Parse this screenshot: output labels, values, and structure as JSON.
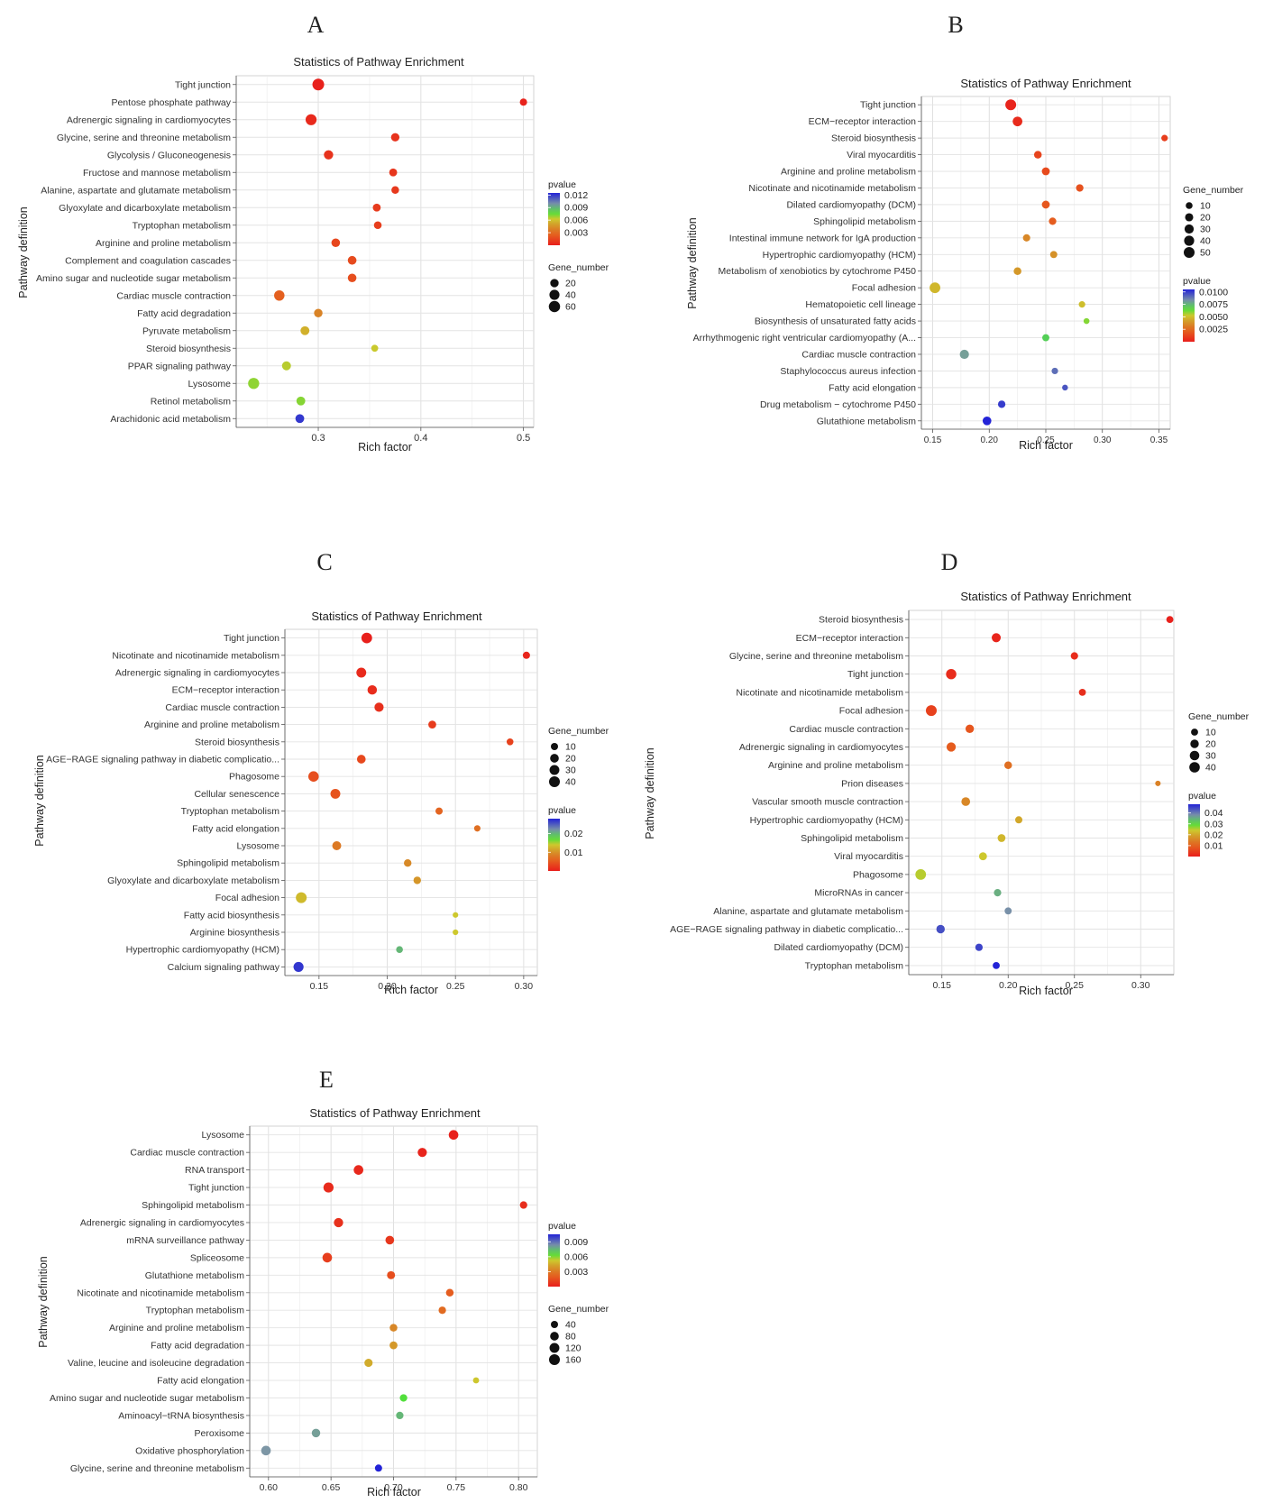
{
  "chart_data": [
    {
      "panel": "A",
      "type": "scatter",
      "title": "Statistics of Pathway Enrichment",
      "xlabel": "Rich factor",
      "ylabel": "Pathway definition",
      "xlim": [
        0.22,
        0.51
      ],
      "xticks": [
        "0.3",
        "0.4",
        "0.5"
      ],
      "grid": true,
      "legend_placement": "right",
      "pvalue_legend": {
        "title": "pvalue",
        "min": 0,
        "max": 0.0125,
        "ticks": [
          "0.012",
          "0.009",
          "0.006",
          "0.003"
        ]
      },
      "size_legend": {
        "title": "Gene_number",
        "ticks": [
          "20",
          "40",
          "60"
        ]
      },
      "legend_order": [
        "pvalue",
        "size"
      ],
      "categories": [
        "Tight junction",
        "Pentose phosphate pathway",
        "Adrenergic signaling in cardiomyocytes",
        "Glycine, serine and threonine metabolism",
        "Glycolysis / Gluconeogenesis",
        "Fructose and mannose metabolism",
        "Alanine, aspartate and glutamate metabolism",
        "Glyoxylate and dicarboxylate metabolism",
        "Tryptophan metabolism",
        "Arginine and proline metabolism",
        "Complement and coagulation cascades",
        "Amino sugar and nucleotide sugar metabolism",
        "Cardiac muscle contraction",
        "Fatty acid degradation",
        "Pyruvate metabolism",
        "Steroid biosynthesis",
        "PPAR signaling pathway",
        "Lysosome",
        "Retinol metabolism",
        "Arachidonic acid metabolism"
      ],
      "x": [
        0.3,
        0.5,
        0.293,
        0.375,
        0.31,
        0.373,
        0.375,
        0.357,
        0.358,
        0.317,
        0.333,
        0.333,
        0.262,
        0.3,
        0.287,
        0.355,
        0.269,
        0.237,
        0.283,
        0.282
      ],
      "pvalue": [
        0.0001,
        0.0002,
        0.0004,
        0.0008,
        0.0008,
        0.0009,
        0.001,
        0.0011,
        0.0012,
        0.0015,
        0.0017,
        0.0018,
        0.0025,
        0.004,
        0.0055,
        0.0063,
        0.0065,
        0.007,
        0.0071,
        0.012
      ],
      "gene_number": [
        68,
        10,
        55,
        20,
        30,
        15,
        13,
        15,
        14,
        22,
        23,
        22,
        45,
        21,
        25,
        8,
        26,
        57,
        24,
        24
      ]
    },
    {
      "panel": "B",
      "type": "scatter",
      "title": "Statistics of Pathway Enrichment",
      "xlabel": "Rich factor",
      "ylabel": "Pathway definition",
      "xlim": [
        0.14,
        0.36
      ],
      "xticks": [
        "0.15",
        "0.20",
        "0.25",
        "0.30",
        "0.35"
      ],
      "grid": true,
      "legend_placement": "right",
      "pvalue_legend": {
        "title": "pvalue",
        "min": 0,
        "max": 0.0105,
        "ticks": [
          "0.0100",
          "0.0075",
          "0.0050",
          "0.0025"
        ]
      },
      "size_legend": {
        "title": "Gene_number",
        "ticks": [
          "10",
          "20",
          "30",
          "40",
          "50"
        ]
      },
      "legend_order": [
        "size",
        "pvalue"
      ],
      "categories": [
        "Tight junction",
        "ECM−receptor interaction",
        "Steroid biosynthesis",
        "Viral myocarditis",
        "Arginine and proline metabolism",
        "Nicotinate and nicotinamide metabolism",
        "Dilated cardiomyopathy (DCM)",
        "Sphingolipid metabolism",
        "Intestinal immune network for IgA production",
        "Hypertrophic cardiomyopathy (HCM)",
        "Metabolism of xenobiotics by cytochrome P450",
        "Focal adhesion",
        "Hematopoietic cell lineage",
        "Biosynthesis of unsaturated fatty acids",
        "Arrhythmogenic right ventricular cardiomyopathy (A...",
        "Cardiac muscle contraction",
        "Staphylococcus aureus infection",
        "Fatty acid elongation",
        "Drug metabolism − cytochrome P450",
        "Glutathione metabolism"
      ],
      "x": [
        0.219,
        0.225,
        0.355,
        0.243,
        0.25,
        0.28,
        0.25,
        0.256,
        0.233,
        0.257,
        0.225,
        0.152,
        0.282,
        0.286,
        0.25,
        0.178,
        0.258,
        0.267,
        0.211,
        0.198
      ],
      "pvalue": [
        0.0002,
        0.0004,
        0.001,
        0.0012,
        0.0014,
        0.0016,
        0.0018,
        0.002,
        0.0035,
        0.0038,
        0.004,
        0.0048,
        0.005,
        0.006,
        0.007,
        0.008,
        0.009,
        0.0095,
        0.01,
        0.0105
      ],
      "gene_number": [
        50,
        35,
        8,
        16,
        18,
        14,
        18,
        14,
        13,
        12,
        16,
        48,
        8,
        5,
        12,
        30,
        8,
        5,
        14,
        25
      ]
    },
    {
      "panel": "C",
      "type": "scatter",
      "title": "Statistics of Pathway Enrichment",
      "xlabel": "Rich factor",
      "ylabel": "Pathway definition",
      "xlim": [
        0.125,
        0.31
      ],
      "xticks": [
        "0.15",
        "0.20",
        "0.25",
        "0.30"
      ],
      "grid": true,
      "legend_placement": "right",
      "pvalue_legend": {
        "title": "pvalue",
        "min": 0,
        "max": 0.028,
        "ticks": [
          "0.02",
          "0.01"
        ]
      },
      "size_legend": {
        "title": "Gene_number",
        "ticks": [
          "10",
          "20",
          "30",
          "40"
        ]
      },
      "legend_order": [
        "size",
        "pvalue"
      ],
      "categories": [
        "Tight junction",
        "Nicotinate and nicotinamide metabolism",
        "Adrenergic signaling in cardiomyocytes",
        "ECM−receptor interaction",
        "Cardiac muscle contraction",
        "Arginine and proline metabolism",
        "Steroid biosynthesis",
        "AGE−RAGE signaling pathway in diabetic complicatio...",
        "Phagosome",
        "Cellular senescence",
        "Tryptophan metabolism",
        "Fatty acid elongation",
        "Lysosome",
        "Sphingolipid metabolism",
        "Glyoxylate and dicarboxylate metabolism",
        "Focal adhesion",
        "Fatty acid biosynthesis",
        "Arginine biosynthesis",
        "Hypertrophic cardiomyopathy (HCM)",
        "Calcium signaling pathway"
      ],
      "x": [
        0.185,
        0.302,
        0.181,
        0.189,
        0.194,
        0.233,
        0.29,
        0.181,
        0.146,
        0.162,
        0.238,
        0.266,
        0.163,
        0.215,
        0.222,
        0.137,
        0.25,
        0.25,
        0.209,
        0.135
      ],
      "pvalue": [
        0.0002,
        0.0006,
        0.001,
        0.0012,
        0.0015,
        0.0025,
        0.003,
        0.0035,
        0.004,
        0.0045,
        0.006,
        0.007,
        0.008,
        0.0095,
        0.0105,
        0.013,
        0.014,
        0.014,
        0.02,
        0.027
      ],
      "gene_number": [
        38,
        10,
        30,
        26,
        24,
        14,
        8,
        20,
        36,
        30,
        10,
        6,
        22,
        12,
        12,
        40,
        3,
        3,
        8,
        32
      ]
    },
    {
      "panel": "D",
      "type": "scatter",
      "title": "Statistics of Pathway Enrichment",
      "xlabel": "Rich factor",
      "ylabel": "Pathway definition",
      "xlim": [
        0.125,
        0.325
      ],
      "xticks": [
        "0.15",
        "0.20",
        "0.25",
        "0.30"
      ],
      "grid": true,
      "legend_placement": "right",
      "pvalue_legend": {
        "title": "pvalue",
        "min": 0,
        "max": 0.048,
        "ticks": [
          "0.04",
          "0.03",
          "0.02",
          "0.01"
        ]
      },
      "size_legend": {
        "title": "Gene_number",
        "ticks": [
          "10",
          "20",
          "30",
          "40"
        ]
      },
      "legend_order": [
        "size",
        "pvalue"
      ],
      "categories": [
        "Steroid biosynthesis",
        "ECM−receptor interaction",
        "Glycine, serine and threonine metabolism",
        "Tight junction",
        "Nicotinate and nicotinamide metabolism",
        "Focal adhesion",
        "Cardiac muscle contraction",
        "Adrenergic signaling in cardiomyocytes",
        "Arginine and proline metabolism",
        "Prion diseases",
        "Vascular smooth muscle contraction",
        "Hypertrophic cardiomyopathy (HCM)",
        "Sphingolipid metabolism",
        "Viral myocarditis",
        "Phagosome",
        "MicroRNAs in cancer",
        "Alanine, aspartate and glutamate metabolism",
        "AGE−RAGE signaling pathway in diabetic complicatio...",
        "Dilated cardiomyopathy (DCM)",
        "Tryptophan metabolism"
      ],
      "x": [
        0.322,
        0.191,
        0.25,
        0.157,
        0.256,
        0.142,
        0.171,
        0.157,
        0.2,
        0.313,
        0.168,
        0.208,
        0.195,
        0.181,
        0.134,
        0.192,
        0.2,
        0.149,
        0.178,
        0.191
      ],
      "pvalue": [
        0.0005,
        0.001,
        0.002,
        0.002,
        0.0025,
        0.005,
        0.008,
        0.009,
        0.012,
        0.015,
        0.016,
        0.02,
        0.022,
        0.024,
        0.025,
        0.035,
        0.038,
        0.044,
        0.045,
        0.048
      ],
      "gene_number": [
        10,
        25,
        12,
        38,
        10,
        44,
        20,
        27,
        14,
        3,
        22,
        11,
        15,
        16,
        42,
        12,
        10,
        20,
        12,
        10
      ]
    },
    {
      "panel": "E",
      "type": "scatter",
      "title": "Statistics of Pathway Enrichment",
      "xlabel": "Rich factor",
      "ylabel": "Pathway definition",
      "xlim": [
        0.585,
        0.815
      ],
      "xticks": [
        "0.60",
        "0.65",
        "0.70",
        "0.75",
        "0.80"
      ],
      "grid": true,
      "legend_placement": "right",
      "pvalue_legend": {
        "title": "pvalue",
        "min": 0,
        "max": 0.0105,
        "ticks": [
          "0.009",
          "0.006",
          "0.003"
        ]
      },
      "size_legend": {
        "title": "Gene_number",
        "ticks": [
          "40",
          "80",
          "120",
          "160"
        ]
      },
      "legend_order": [
        "pvalue",
        "size"
      ],
      "categories": [
        "Lysosome",
        "Cardiac muscle contraction",
        "RNA transport",
        "Tight junction",
        "Sphingolipid metabolism",
        "Adrenergic signaling in cardiomyocytes",
        "mRNA surveillance pathway",
        "Spliceosome",
        "Glutathione metabolism",
        "Nicotinate and nicotinamide metabolism",
        "Tryptophan metabolism",
        "Arginine and proline metabolism",
        "Fatty acid degradation",
        "Valine, leucine and isoleucine degradation",
        "Fatty acid elongation",
        "Amino sugar and nucleotide sugar metabolism",
        "Aminoacyl−tRNA biosynthesis",
        "Peroxisome",
        "Oxidative phosphorylation",
        "Glycine, serine and threonine metabolism"
      ],
      "x": [
        0.748,
        0.723,
        0.672,
        0.648,
        0.804,
        0.656,
        0.697,
        0.647,
        0.698,
        0.745,
        0.739,
        0.7,
        0.7,
        0.68,
        0.766,
        0.708,
        0.705,
        0.638,
        0.598,
        0.688
      ],
      "pvalue": [
        0.0001,
        0.0002,
        0.0003,
        0.0004,
        0.0005,
        0.0006,
        0.0008,
        0.001,
        0.0015,
        0.002,
        0.0025,
        0.0035,
        0.004,
        0.0045,
        0.0052,
        0.0065,
        0.0075,
        0.008,
        0.0082,
        0.0105
      ],
      "gene_number": [
        110,
        95,
        110,
        130,
        45,
        100,
        80,
        110,
        60,
        50,
        45,
        50,
        55,
        65,
        20,
        45,
        45,
        75,
        110,
        40
      ]
    }
  ]
}
